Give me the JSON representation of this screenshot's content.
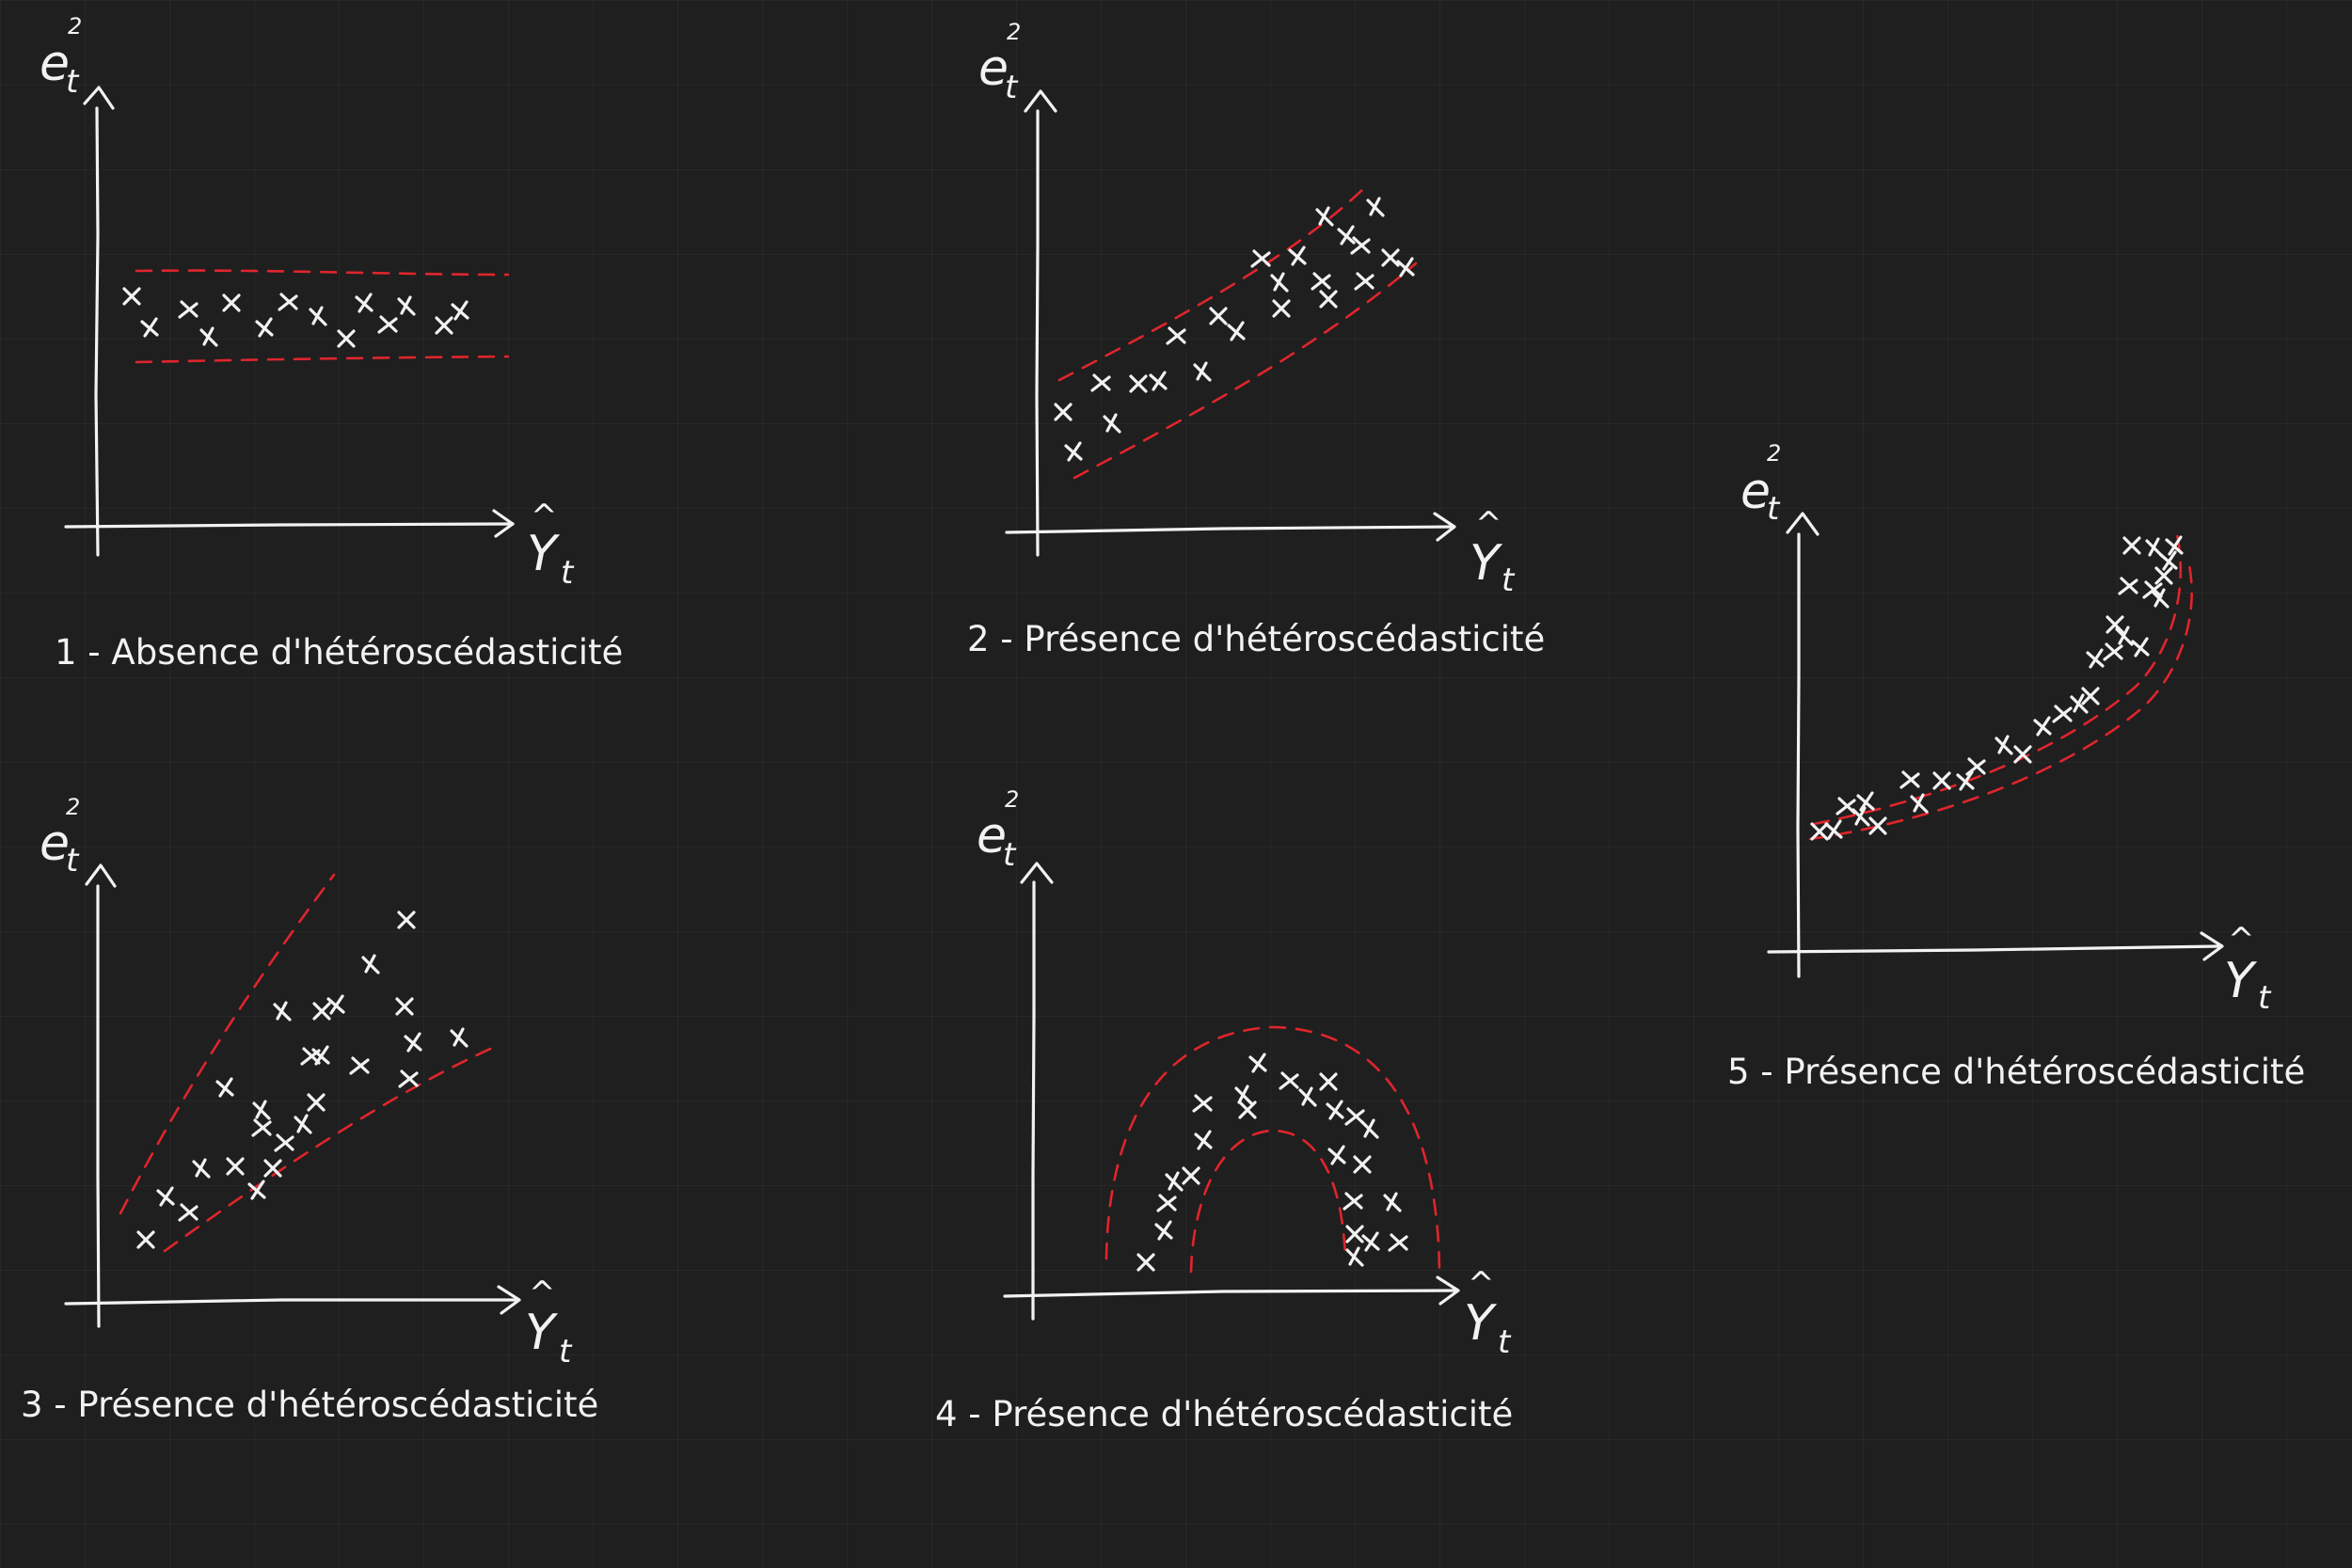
{
  "diagrams": [
    {
      "id": 1,
      "caption": "1 - Absence d'hétéroscédasticité",
      "y_label": "e",
      "y_sub": "t",
      "y_sup": "2",
      "x_label": "Y",
      "x_hat": "^",
      "x_sub": "t"
    },
    {
      "id": 2,
      "caption": "2 - Présence d'hétéroscédasticité",
      "y_label": "e",
      "y_sub": "t",
      "y_sup": "2",
      "x_label": "Y",
      "x_hat": "^",
      "x_sub": "t"
    },
    {
      "id": 3,
      "caption": "3 - Présence d'hétéroscédasticité",
      "y_label": "e",
      "y_sub": "t",
      "y_sup": "2",
      "x_label": "Y",
      "x_hat": "^",
      "x_sub": "t"
    },
    {
      "id": 4,
      "caption": "4 - Présence d'hétéroscédasticité",
      "y_label": "e",
      "y_sub": "t",
      "y_sup": "2",
      "x_label": "Y",
      "x_hat": "^",
      "x_sub": "t"
    },
    {
      "id": 5,
      "caption": "5 - Présence d'hétéroscédasticité",
      "y_label": "e",
      "y_sub": "t",
      "y_sup": "2",
      "x_label": "Y",
      "x_hat": "^",
      "x_sub": "t"
    }
  ],
  "colors": {
    "ink": "#f2f2f2",
    "band": "#e0252c",
    "background": "#1f1f1f"
  }
}
